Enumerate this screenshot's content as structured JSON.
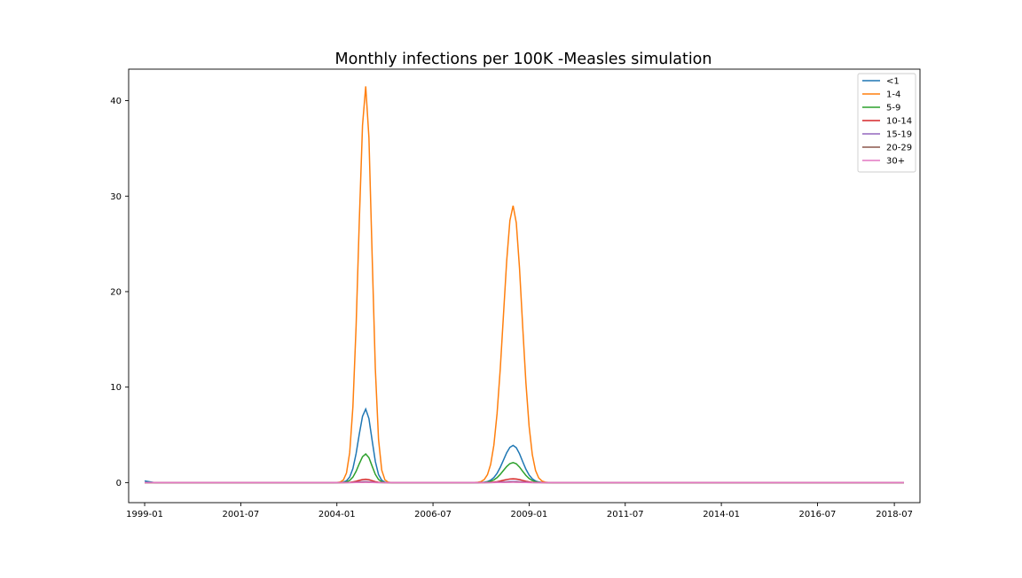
{
  "chart_data": {
    "type": "line",
    "title": "Monthly infections per 100K -Measles simulation",
    "xlabel": "",
    "ylabel": "",
    "x_start": "1999-01",
    "x_end": "2018-10",
    "xlim": [
      "1998-08",
      "2019-03"
    ],
    "ylim": [
      -2.1,
      43.3
    ],
    "x_ticks": [
      "1999-01",
      "2001-07",
      "2004-01",
      "2006-07",
      "2009-01",
      "2011-07",
      "2014-01",
      "2016-07",
      "2018-07"
    ],
    "y_ticks": [
      0,
      10,
      20,
      30,
      40
    ],
    "grid": false,
    "legend_position": "top-right",
    "series": [
      {
        "name": "<1",
        "color": "#1f77b4",
        "peaks": [
          {
            "center": "2004-10",
            "height": 7.7,
            "rise": 2.2,
            "fall": 1.9
          },
          {
            "center": "2008-08",
            "height": 3.9,
            "rise": 3.0,
            "fall": 2.8
          }
        ],
        "initial": 0.18
      },
      {
        "name": "1-4",
        "color": "#ff7f0e",
        "peaks": [
          {
            "center": "2004-10",
            "height": 41.5,
            "rise": 2.2,
            "fall": 1.9
          },
          {
            "center": "2008-08",
            "height": 29.0,
            "rise": 3.0,
            "fall": 2.8
          }
        ],
        "initial": 0.0
      },
      {
        "name": "5-9",
        "color": "#2ca02c",
        "peaks": [
          {
            "center": "2004-10",
            "height": 3.0,
            "rise": 2.2,
            "fall": 1.9
          },
          {
            "center": "2008-08",
            "height": 2.1,
            "rise": 3.0,
            "fall": 2.8
          }
        ],
        "initial": 0.0
      },
      {
        "name": "10-14",
        "color": "#d62728",
        "peaks": [
          {
            "center": "2004-10",
            "height": 0.35,
            "rise": 2.2,
            "fall": 1.9
          },
          {
            "center": "2008-08",
            "height": 0.4,
            "rise": 3.0,
            "fall": 2.8
          }
        ],
        "initial": 0.0
      },
      {
        "name": "15-19",
        "color": "#9467bd",
        "peaks": [
          {
            "center": "2004-10",
            "height": 0.1,
            "rise": 2.2,
            "fall": 1.9
          },
          {
            "center": "2008-08",
            "height": 0.12,
            "rise": 3.0,
            "fall": 2.8
          }
        ],
        "initial": 0.0
      },
      {
        "name": "20-29",
        "color": "#8c564b",
        "peaks": [
          {
            "center": "2004-10",
            "height": 0.05,
            "rise": 2.2,
            "fall": 1.9
          },
          {
            "center": "2008-08",
            "height": 0.06,
            "rise": 3.0,
            "fall": 2.8
          }
        ],
        "initial": 0.0
      },
      {
        "name": "30+",
        "color": "#e377c2",
        "peaks": [
          {
            "center": "2004-10",
            "height": 0.02,
            "rise": 2.2,
            "fall": 1.9
          },
          {
            "center": "2008-08",
            "height": 0.03,
            "rise": 3.0,
            "fall": 2.8
          }
        ],
        "initial": 0.0
      }
    ]
  }
}
